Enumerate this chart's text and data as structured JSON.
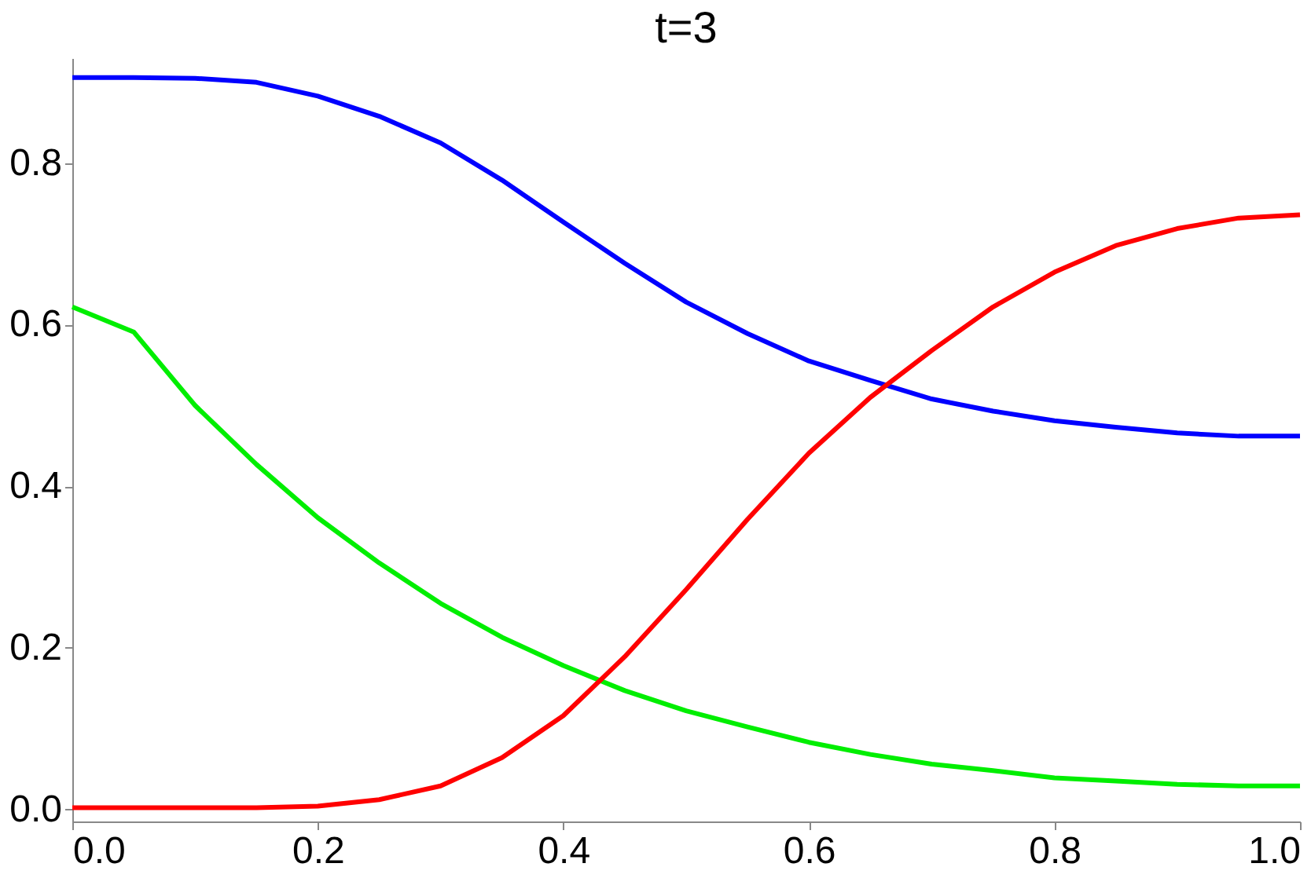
{
  "chart_data": {
    "type": "line",
    "title": "t=3",
    "x": [
      0,
      0.05,
      0.1,
      0.15,
      0.2,
      0.25,
      0.3,
      0.35,
      0.4,
      0.45,
      0.5,
      0.55,
      0.6,
      0.65,
      0.7,
      0.75,
      0.8,
      0.85,
      0.9,
      0.95,
      1.0
    ],
    "series": [
      {
        "color": "#0000ff",
        "values": [
          0.906,
          0.906,
          0.905,
          0.9,
          0.883,
          0.858,
          0.825,
          0.779,
          0.727,
          0.676,
          0.628,
          0.589,
          0.555,
          0.531,
          0.508,
          0.493,
          0.481,
          0.473,
          0.466,
          0.462,
          0.462
        ]
      },
      {
        "color": "#00ee00",
        "values": [
          0.622,
          0.591,
          0.5,
          0.427,
          0.361,
          0.305,
          0.255,
          0.213,
          0.178,
          0.147,
          0.122,
          0.102,
          0.083,
          0.068,
          0.056,
          0.048,
          0.039,
          0.035,
          0.031,
          0.029,
          0.029
        ]
      },
      {
        "color": "#ff0000",
        "values": [
          0.002,
          0.002,
          0.002,
          0.002,
          0.004,
          0.012,
          0.029,
          0.064,
          0.116,
          0.189,
          0.272,
          0.359,
          0.441,
          0.51,
          0.568,
          0.622,
          0.665,
          0.698,
          0.719,
          0.732,
          0.736
        ]
      }
    ],
    "xlim": [
      0,
      1
    ],
    "xticks": [
      {
        "value": 0,
        "label": "0.0"
      },
      {
        "value": 0.2,
        "label": "0.2"
      },
      {
        "value": 0.4,
        "label": "0.4"
      },
      {
        "value": 0.6,
        "label": "0.6"
      },
      {
        "value": 0.8,
        "label": "0.8"
      },
      {
        "value": 1,
        "label": "1.0"
      }
    ],
    "ylim": [
      -0.015,
      0.93
    ],
    "yticks": [
      {
        "value": 0,
        "label": "0.0"
      },
      {
        "value": 0.2,
        "label": "0.2"
      },
      {
        "value": 0.4,
        "label": "0.4"
      },
      {
        "value": 0.6,
        "label": "0.6"
      },
      {
        "value": 0.8,
        "label": "0.8"
      }
    ],
    "grid": false,
    "legend": false,
    "marker": "none",
    "line_style": "solid"
  }
}
